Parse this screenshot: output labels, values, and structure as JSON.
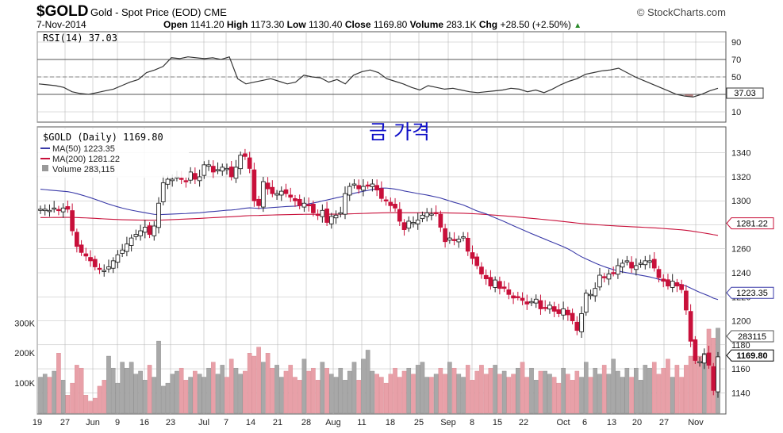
{
  "header": {
    "symbol": "$GOLD",
    "name": "Gold - Spot Price (EOD) CME",
    "source": "© StockCharts.com",
    "date": "7-Nov-2014",
    "ohlc": [
      {
        "label": "Open",
        "value": "1141.20"
      },
      {
        "label": "High",
        "value": "1173.30"
      },
      {
        "label": "Low",
        "value": "1130.40"
      },
      {
        "label": "Close",
        "value": "1169.80"
      },
      {
        "label": "Volume",
        "value": "283.1K"
      },
      {
        "label": "Chg",
        "value": "+28.50 (+2.50%)"
      }
    ],
    "chg_arrow": "▲"
  },
  "annotation": "금 가격",
  "colors": {
    "up": "#222222",
    "down": "#c8103a",
    "ma50": "#3a3aa8",
    "ma200": "#c8103a",
    "vol_up": "#a8a8a8",
    "vol_down": "#e8a0a8",
    "grid": "#b8b8b8",
    "rsi": "#333333",
    "rsi_fill": "#a06060"
  },
  "chart_data": {
    "type": "line",
    "x_ticks": [
      "19",
      "27",
      "Jun",
      "9",
      "16",
      "23",
      "Jul",
      "7",
      "14",
      "21",
      "28",
      "Aug",
      "11",
      "18",
      "25",
      "Sep",
      "8",
      "15",
      "22",
      "Oct",
      "6",
      "13",
      "20",
      "27",
      "Nov"
    ],
    "rsi": {
      "label": "RSI(14) 37.03",
      "current": "37.03",
      "ylim": [
        0,
        100
      ],
      "ticks": [
        "90",
        "70",
        "50",
        "30",
        "10"
      ],
      "overbought": 70,
      "oversold": 30,
      "values": [
        42,
        41,
        40,
        38,
        33,
        31,
        30,
        32,
        34,
        36,
        40,
        44,
        47,
        55,
        58,
        62,
        72,
        71,
        73,
        72,
        71,
        72,
        70,
        73,
        48,
        42,
        44,
        46,
        48,
        45,
        42,
        44,
        52,
        50,
        49,
        44,
        47,
        42,
        52,
        56,
        58,
        55,
        48,
        45,
        42,
        38,
        35,
        40,
        38,
        36,
        37,
        35,
        33,
        32,
        33,
        34,
        35,
        37,
        36,
        33,
        35,
        32,
        36,
        41,
        45,
        48,
        53,
        55,
        57,
        58,
        60,
        55,
        50,
        46,
        42,
        38,
        34,
        30,
        28,
        27,
        30,
        34,
        37
      ]
    },
    "price": {
      "title": "$GOLD (Daily) 1169.80",
      "ylim": [
        1125,
        1355
      ],
      "ticks": [
        "1340",
        "1320",
        "1300",
        "1280",
        "1260",
        "1240",
        "1220",
        "1200",
        "1180",
        "1160",
        "1140"
      ],
      "ma50_label": "MA(50) 1223.35",
      "ma200_label": "MA(200) 1281.22",
      "volume_label": "Volume 283,115",
      "ma50_last": "1223.35",
      "ma200_last": "1281.22",
      "close_last": "1169.80",
      "closes": [
        1293,
        1293,
        1292,
        1294,
        1292,
        1294,
        1293,
        1275,
        1262,
        1257,
        1254,
        1250,
        1245,
        1243,
        1242,
        1245,
        1250,
        1255,
        1259,
        1264,
        1269,
        1272,
        1275,
        1278,
        1272,
        1279,
        1298,
        1315,
        1318,
        1318,
        1320,
        1318,
        1316,
        1324,
        1318,
        1320,
        1330,
        1330,
        1324,
        1326,
        1328,
        1327,
        1320,
        1328,
        1338,
        1337,
        1327,
        1300,
        1296,
        1316,
        1310,
        1306,
        1306,
        1308,
        1306,
        1303,
        1300,
        1296,
        1298,
        1296,
        1290,
        1288,
        1292,
        1282,
        1287,
        1288,
        1290,
        1306,
        1312,
        1314,
        1310,
        1312,
        1313,
        1314,
        1309,
        1302,
        1300,
        1296,
        1294,
        1283,
        1276,
        1283,
        1282,
        1284,
        1288,
        1290,
        1289,
        1290,
        1278,
        1266,
        1269,
        1267,
        1268,
        1270,
        1258,
        1252,
        1246,
        1239,
        1235,
        1229,
        1234,
        1227,
        1227,
        1222,
        1219,
        1220,
        1217,
        1214,
        1216,
        1218,
        1210,
        1211,
        1213,
        1208,
        1206,
        1210,
        1205,
        1200,
        1192,
        1206,
        1223,
        1222,
        1227,
        1238,
        1236,
        1239,
        1240,
        1246,
        1248,
        1250,
        1244,
        1246,
        1248,
        1250,
        1250,
        1244,
        1236,
        1233,
        1229,
        1233,
        1229,
        1226,
        1209,
        1183,
        1167,
        1166,
        1172,
        1163,
        1142,
        1170
      ]
    },
    "volume": {
      "ticks": [
        "300K",
        "200K",
        "100K"
      ],
      "ylim": [
        0,
        330000
      ],
      "values": [
        120000,
        130000,
        120000,
        140000,
        200000,
        110000,
        60000,
        100000,
        160000,
        150000,
        60000,
        40000,
        50000,
        90000,
        110000,
        190000,
        150000,
        100000,
        170000,
        150000,
        170000,
        130000,
        140000,
        110000,
        160000,
        120000,
        240000,
        90000,
        100000,
        130000,
        140000,
        150000,
        110000,
        120000,
        140000,
        130000,
        120000,
        150000,
        170000,
        130000,
        160000,
        120000,
        180000,
        150000,
        130000,
        140000,
        200000,
        190000,
        220000,
        170000,
        200000,
        150000,
        160000,
        120000,
        140000,
        160000,
        120000,
        110000,
        180000,
        140000,
        150000,
        110000,
        170000,
        150000,
        130000,
        120000,
        150000,
        110000,
        140000,
        170000,
        110000,
        180000,
        210000,
        140000,
        130000,
        120000,
        100000,
        130000,
        150000,
        120000,
        140000,
        150000,
        130000,
        160000,
        170000,
        120000,
        120000,
        130000,
        150000,
        130000,
        170000,
        150000,
        130000,
        120000,
        160000,
        110000,
        140000,
        160000,
        130000,
        150000,
        160000,
        130000,
        140000,
        120000,
        130000,
        150000,
        170000,
        120000,
        150000,
        110000,
        140000,
        140000,
        130000,
        120000,
        100000,
        150000,
        130000,
        110000,
        140000,
        120000,
        170000,
        120000,
        150000,
        130000,
        160000,
        130000,
        180000,
        140000,
        120000,
        150000,
        120000,
        150000,
        110000,
        160000,
        150000,
        170000,
        130000,
        150000,
        180000,
        120000,
        160000,
        120000,
        160000,
        190000,
        240000,
        190000,
        200000,
        280000,
        250000,
        283115
      ]
    }
  }
}
